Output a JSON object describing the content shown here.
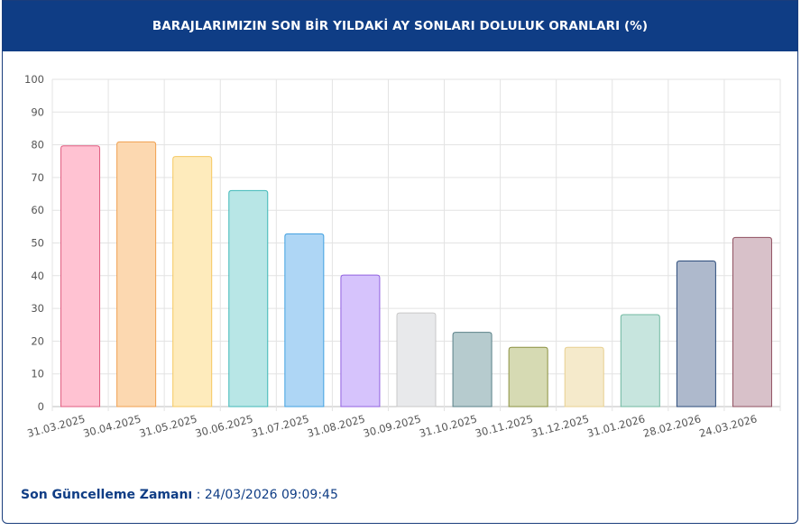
{
  "header": {
    "title": "BARAJLARIMIZIN SON BİR YILDAKİ AY SONLARI DOLULUK ORANLARI (%)"
  },
  "footer": {
    "label": "Son Güncelleme Zamanı",
    "separator": " : ",
    "value": "24/03/2026 09:09:45"
  },
  "chart_data": {
    "type": "bar",
    "categories": [
      "31.03.2025",
      "30.04.2025",
      "31.05.2025",
      "30.06.2025",
      "31.07.2025",
      "31.08.2025",
      "30.09.2025",
      "31.10.2025",
      "30.11.2025",
      "31.12.2025",
      "31.01.2026",
      "28.02.2026",
      "24.03.2026"
    ],
    "values": [
      79.7,
      80.9,
      76.4,
      66.0,
      52.8,
      40.2,
      28.6,
      22.7,
      18.1,
      18.1,
      28.1,
      44.5,
      51.7
    ],
    "fill_colors": [
      "#ffc2d2",
      "#fcd8b0",
      "#feebbc",
      "#b8e6e6",
      "#aed6f5",
      "#d6c3fc",
      "#e8e9eb",
      "#b6cbce",
      "#d6dab3",
      "#f5eacb",
      "#c7e5de",
      "#aeb9cc",
      "#d8c1c9"
    ],
    "border_colors": [
      "#e05c80",
      "#f0a050",
      "#f5c860",
      "#3fb8b8",
      "#40a0e0",
      "#9060e0",
      "#c8c8c8",
      "#5a8088",
      "#8a9040",
      "#e8d090",
      "#70b8a0",
      "#2a4a7a",
      "#905060"
    ],
    "ylim": [
      0,
      100
    ],
    "yticks": [
      0,
      10,
      20,
      30,
      40,
      50,
      60,
      70,
      80,
      90,
      100
    ],
    "grid": true,
    "legend": "none",
    "xlabel": "",
    "ylabel": ""
  }
}
